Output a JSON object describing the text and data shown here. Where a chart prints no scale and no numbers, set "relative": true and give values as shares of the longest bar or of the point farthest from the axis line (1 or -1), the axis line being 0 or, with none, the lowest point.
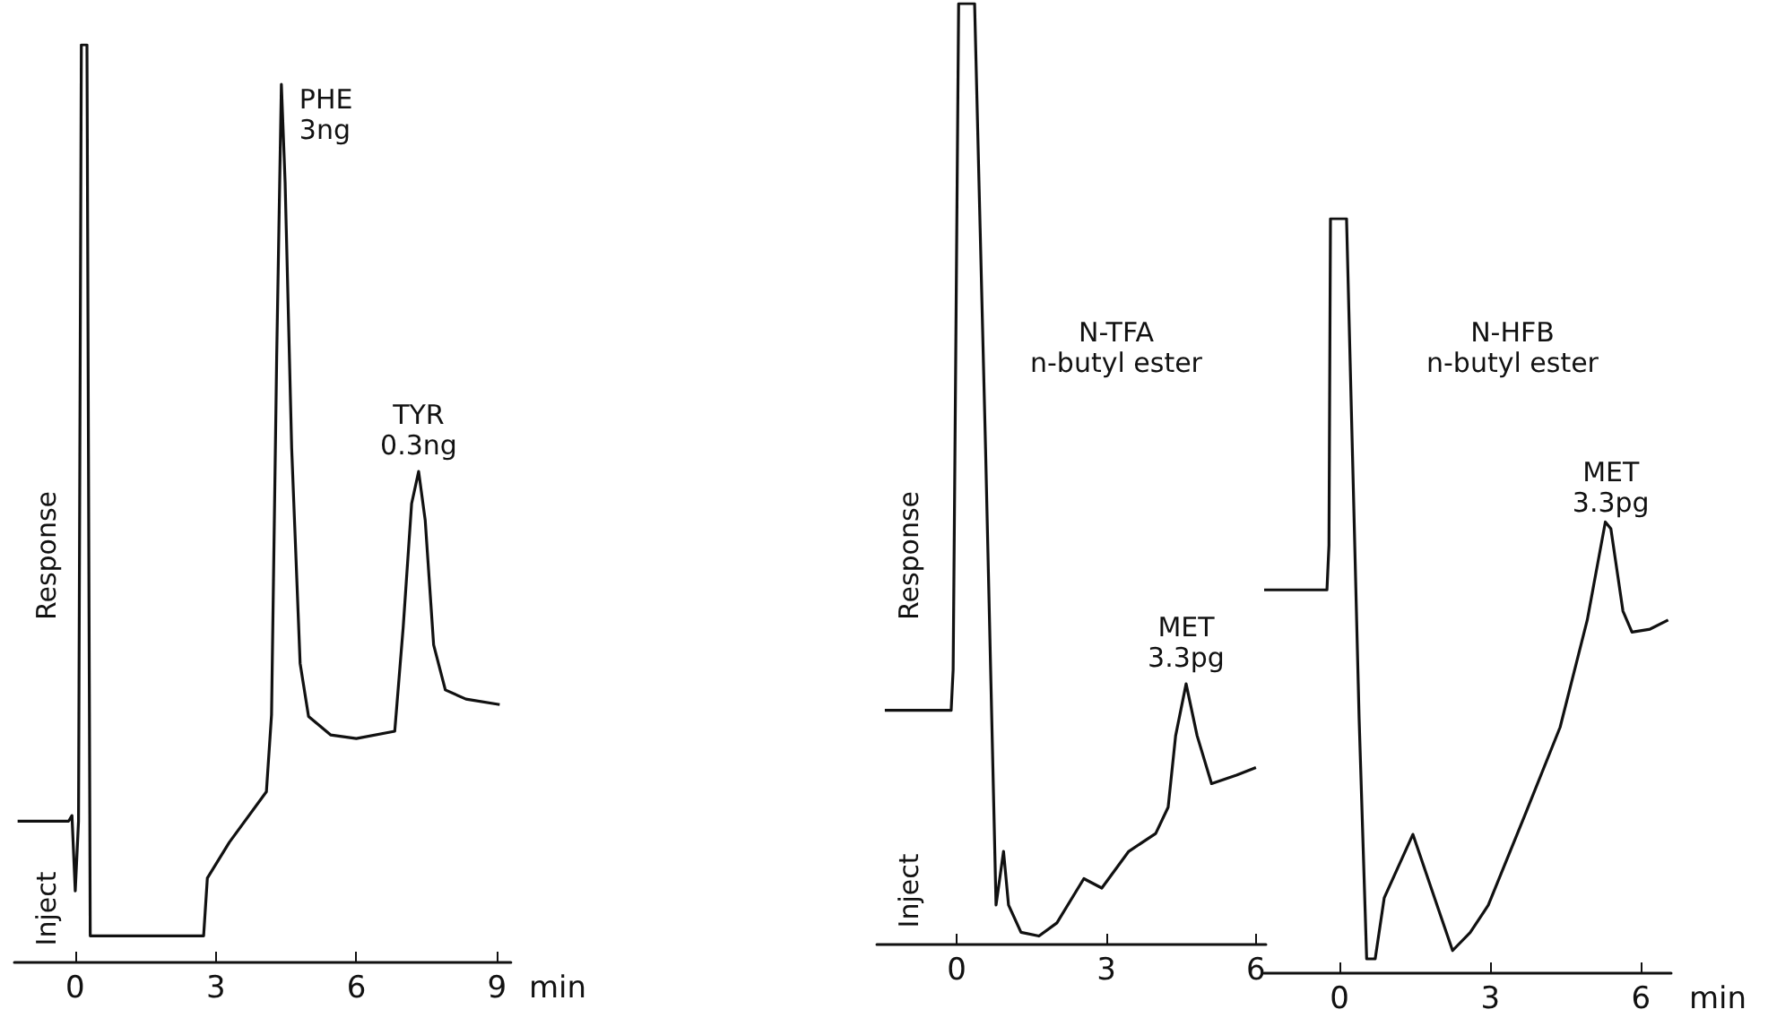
{
  "chart_data": [
    {
      "type": "line",
      "relative": true,
      "ylabel": "Response",
      "xlabel": "min",
      "xlim": [
        -1.3,
        9.3
      ],
      "xticks": [
        0,
        3,
        6,
        9
      ],
      "grid": false,
      "marker": "none",
      "line_style": "solid",
      "x": [
        -1.23,
        -0.14,
        -0.07,
        0,
        0.07,
        0.13,
        0.25,
        0.32,
        2.74,
        2.82,
        3.29,
        4.08,
        4.19,
        4.3,
        4.4,
        4.48,
        4.62,
        4.8,
        4.98,
        5.45,
        6.0,
        6.82,
        7.0,
        7.18,
        7.33,
        7.47,
        7.65,
        7.9,
        8.34,
        9.06
      ],
      "series": [
        {
          "color": "#111111",
          "values": [
            0.154,
            0.154,
            0.16,
            0.078,
            0.154,
            1,
            1,
            0.029,
            0.029,
            0.092,
            0.131,
            0.186,
            0.27,
            0.66,
            0.957,
            0.85,
            0.56,
            0.326,
            0.268,
            0.248,
            0.244,
            0.252,
            0.365,
            0.5,
            0.535,
            0.482,
            0.346,
            0.297,
            0.287,
            0.281
          ]
        }
      ],
      "annotations": [
        {
          "text": "PHE\n3ng",
          "x": 4.4,
          "y": 0.957
        },
        {
          "text": "TYR\n0.3ng",
          "x": 7.33,
          "y": 0.535
        },
        "Inject"
      ]
    },
    {
      "type": "line",
      "relative": true,
      "title": "N-TFA\nn-butyl ester",
      "ylabel": "Response",
      "xlim": [
        -1.6,
        6.2
      ],
      "xticks": [
        0,
        3,
        6
      ],
      "grid": false,
      "marker": "none",
      "line_style": "solid",
      "x": [
        -1.44,
        -0.11,
        -0.07,
        0.04,
        0.36,
        0.58,
        0.79,
        0.94,
        1.04,
        1.29,
        1.65,
        2.01,
        2.55,
        2.91,
        3.45,
        3.99,
        4.24,
        4.39,
        4.6,
        4.82,
        5.11,
        5.61,
        6.0
      ],
      "series": [
        {
          "color": "#111111",
          "values": [
            0.249,
            0.249,
            0.292,
            1,
            1,
            0.526,
            0.042,
            0.099,
            0.042,
            0.013,
            0.009,
            0.023,
            0.07,
            0.06,
            0.099,
            0.118,
            0.146,
            0.222,
            0.277,
            0.222,
            0.171,
            0.18,
            0.188
          ]
        }
      ],
      "annotations": [
        {
          "text": "MET\n3.3pg",
          "x": 4.6,
          "y": 0.277
        },
        "Inject"
      ]
    },
    {
      "type": "line",
      "relative": true,
      "title": "N-HFB\nn-butyl ester",
      "xlabel": "min",
      "xlim": [
        -1.5,
        6.6
      ],
      "xticks": [
        0,
        3,
        6
      ],
      "grid": false,
      "marker": "none",
      "line_style": "solid",
      "x": [
        -1.5,
        -0.25,
        -0.21,
        -0.18,
        0.14,
        0.39,
        0.54,
        0.71,
        0.89,
        1.46,
        1.89,
        2.25,
        2.6,
        2.96,
        3.68,
        4.39,
        4.93,
        5.29,
        5.4,
        5.64,
        5.82,
        6.18,
        6.54
      ],
      "series": [
        {
          "color": "#111111",
          "values": [
            0.508,
            0.508,
            0.567,
            1,
            1,
            0.338,
            0.019,
            0.019,
            0.1,
            0.184,
            0.1,
            0.03,
            0.054,
            0.09,
            0.208,
            0.326,
            0.468,
            0.598,
            0.589,
            0.48,
            0.452,
            0.456,
            0.468
          ]
        }
      ],
      "annotations": [
        {
          "text": "MET\n3.3pg",
          "x": 5.4,
          "y": 0.589
        }
      ]
    }
  ]
}
